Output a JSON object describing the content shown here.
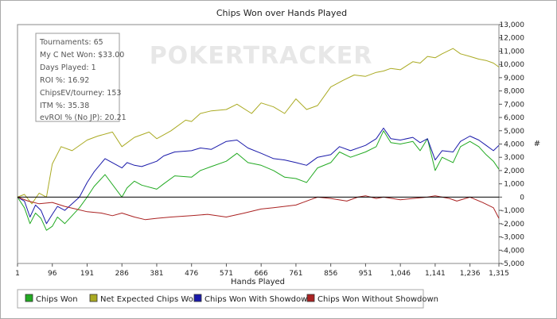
{
  "watermark": "POKERTRACKER",
  "info_box": {
    "lines": [
      "Tournaments: 65",
      "My C Net Won: $33.00",
      "Days Played: 1",
      "ROI %: 16.92",
      "ChipsEV/tourney: 153",
      "ITM %: 35.38",
      "evROI % (No JP): 20.21"
    ]
  },
  "colors": {
    "chips_won": "#22aa22",
    "net_expected": "#aaaa22",
    "with_showdown": "#1a1aaa",
    "without_showdown": "#aa2222",
    "zero_line": "#000000",
    "plot_border": "#888888"
  },
  "chart_data": {
    "type": "line",
    "title": "Chips Won over Hands Played",
    "xlabel": "Hands Played",
    "ylabel": "#",
    "xlim": [
      1,
      1315
    ],
    "ylim": [
      -5000,
      13000
    ],
    "x_ticks": [
      1,
      96,
      191,
      286,
      381,
      476,
      571,
      666,
      761,
      856,
      951,
      1046,
      1141,
      1236,
      1315
    ],
    "x_tick_labels": [
      "1",
      "96",
      "191",
      "286",
      "381",
      "476",
      "571",
      "666",
      "761",
      "856",
      "951",
      "1,046",
      "1,141",
      "1,236",
      "1,315"
    ],
    "y_ticks": [
      13000,
      12000,
      11000,
      10000,
      9000,
      8000,
      7000,
      6000,
      5000,
      4000,
      3000,
      2000,
      1000,
      0,
      -1000,
      -2000,
      -3000,
      -4000,
      -5000
    ],
    "y_tick_labels": [
      "13,000",
      "12,000",
      "11,000",
      "10,000",
      "9,000",
      "8,000",
      "7,000",
      "6,000",
      "5,000",
      "4,000",
      "3,000",
      "2,000",
      "1,000",
      "0",
      "-1,000",
      "-2,000",
      "-3,000",
      "-4,000",
      "-5,000"
    ],
    "grid": false,
    "legend_position": "bottom",
    "series": [
      {
        "name": "Chips Won",
        "color": "#22aa22",
        "x": [
          1,
          20,
          35,
          50,
          65,
          80,
          96,
          110,
          130,
          150,
          170,
          191,
          210,
          240,
          286,
          300,
          320,
          340,
          381,
          400,
          430,
          476,
          500,
          530,
          571,
          600,
          630,
          666,
          700,
          730,
          761,
          790,
          820,
          856,
          880,
          910,
          951,
          980,
          1000,
          1020,
          1046,
          1080,
          1100,
          1120,
          1141,
          1160,
          1190,
          1210,
          1236,
          1260,
          1280,
          1300,
          1315
        ],
        "y": [
          0,
          -800,
          -2000,
          -1200,
          -1600,
          -2500,
          -2200,
          -1500,
          -2000,
          -1400,
          -800,
          0,
          800,
          1700,
          0,
          700,
          1200,
          900,
          600,
          1000,
          1600,
          1500,
          2000,
          2300,
          2700,
          3300,
          2600,
          2400,
          2000,
          1500,
          1400,
          1100,
          2200,
          2600,
          3400,
          3000,
          3400,
          3800,
          5000,
          4100,
          4000,
          4200,
          3500,
          4400,
          2000,
          3000,
          2600,
          3800,
          4200,
          3800,
          3200,
          2700,
          2100
        ]
      },
      {
        "name": "Net Expected Chips Won",
        "color": "#aaaa22",
        "x": [
          1,
          20,
          40,
          60,
          80,
          96,
          120,
          150,
          191,
          220,
          260,
          286,
          320,
          360,
          381,
          420,
          460,
          476,
          500,
          530,
          571,
          600,
          640,
          666,
          700,
          730,
          761,
          790,
          820,
          856,
          890,
          920,
          951,
          980,
          1000,
          1020,
          1046,
          1080,
          1100,
          1120,
          1141,
          1160,
          1190,
          1210,
          1236,
          1260,
          1280,
          1300,
          1315
        ],
        "y": [
          0,
          200,
          -500,
          300,
          0,
          2500,
          3800,
          3500,
          4300,
          4600,
          4900,
          3800,
          4500,
          4900,
          4400,
          5000,
          5800,
          5700,
          6300,
          6500,
          6600,
          7000,
          6300,
          7100,
          6800,
          6300,
          7400,
          6600,
          6900,
          8300,
          8800,
          9200,
          9100,
          9400,
          9500,
          9700,
          9600,
          10200,
          10100,
          10600,
          10500,
          10800,
          11200,
          10800,
          10600,
          10400,
          10300,
          10100,
          9800
        ]
      },
      {
        "name": "Chips Won With Showdown",
        "color": "#1a1aaa",
        "x": [
          1,
          20,
          35,
          50,
          65,
          80,
          96,
          110,
          130,
          150,
          170,
          191,
          210,
          240,
          286,
          300,
          320,
          340,
          381,
          400,
          430,
          476,
          500,
          530,
          571,
          600,
          630,
          666,
          700,
          730,
          761,
          790,
          820,
          856,
          880,
          910,
          951,
          980,
          1000,
          1020,
          1046,
          1080,
          1100,
          1120,
          1141,
          1160,
          1190,
          1210,
          1236,
          1260,
          1280,
          1300,
          1315
        ],
        "y": [
          0,
          -300,
          -1500,
          -600,
          -1000,
          -2000,
          -1300,
          -700,
          -1000,
          -500,
          0,
          1100,
          1900,
          2900,
          2200,
          2600,
          2400,
          2300,
          2700,
          3100,
          3400,
          3500,
          3700,
          3600,
          4200,
          4300,
          3700,
          3300,
          2900,
          2800,
          2600,
          2400,
          3000,
          3200,
          3800,
          3500,
          3900,
          4400,
          5200,
          4400,
          4300,
          4500,
          4100,
          4400,
          2800,
          3500,
          3400,
          4200,
          4600,
          4300,
          3900,
          3500,
          3900
        ]
      },
      {
        "name": "Chips Won Without Showdown",
        "color": "#aa2222",
        "x": [
          1,
          30,
          60,
          96,
          130,
          160,
          191,
          230,
          260,
          286,
          320,
          350,
          381,
          420,
          476,
          520,
          571,
          620,
          666,
          700,
          761,
          800,
          820,
          856,
          900,
          930,
          951,
          980,
          1000,
          1046,
          1080,
          1120,
          1141,
          1180,
          1200,
          1236,
          1270,
          1300,
          1315
        ],
        "y": [
          0,
          -300,
          -500,
          -400,
          -700,
          -900,
          -1100,
          -1200,
          -1400,
          -1200,
          -1500,
          -1700,
          -1600,
          -1500,
          -1400,
          -1300,
          -1500,
          -1200,
          -900,
          -800,
          -600,
          -200,
          0,
          -100,
          -300,
          0,
          100,
          -100,
          0,
          -200,
          -100,
          0,
          100,
          -100,
          -300,
          0,
          -400,
          -800,
          -1600
        ]
      }
    ]
  }
}
